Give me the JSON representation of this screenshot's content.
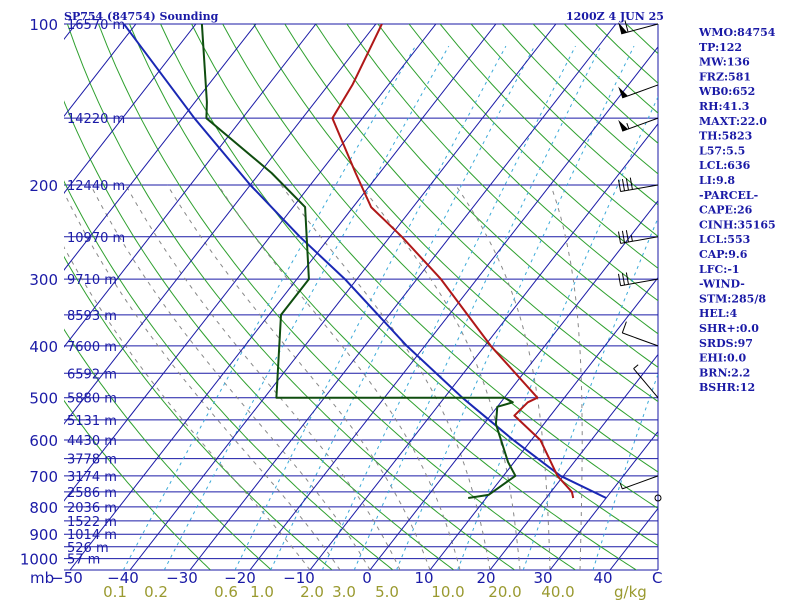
{
  "header": {
    "station": "SP754 (84754) Sounding",
    "time": "1200Z  4 JUN 25"
  },
  "pressure_unit": "mb",
  "mixing_unit": "g/kg",
  "temp_unit": "C",
  "indices": [
    "WMO:84754",
    "TP:122",
    "MW:136",
    "FRZ:581",
    "WB0:652",
    "RH:41.3",
    "MAXT:22.0",
    "TH:5823",
    "L57:5.5",
    "LCL:636",
    "LI:9.8",
    "-PARCEL-",
    "CAPE:26",
    "CINH:35165",
    "LCL:553",
    "CAP:9.6",
    "LFC:-1",
    "-WIND-",
    "STM:285/8",
    "HEL:4",
    "SHR+:0.0",
    "SRDS:97",
    "EHI:0.0",
    "BRN:2.2",
    "BSHR:12"
  ],
  "colors": {
    "isobar": "#1a1aa6",
    "isotherm": "#1a1aa6",
    "dry_adiabat": "#2fa02f",
    "moist_adiabat": "#888888",
    "mixing_ratio": "#3aa9d8",
    "temperature": "#b01818",
    "dewpoint": "#0f4d0f",
    "parcel": "#1a28b4",
    "label_text": "#1a1aa6",
    "mixing_text": "#9a9a30"
  },
  "chart_data": {
    "type": "skew-t",
    "pressure_levels": [
      100,
      200,
      300,
      400,
      500,
      600,
      700,
      800,
      900,
      1000
    ],
    "height_labels": [
      {
        "p": 100,
        "text": "16570 m"
      },
      {
        "p": 150,
        "text": "14220 m"
      },
      {
        "p": 200,
        "text": "12440 m"
      },
      {
        "p": 250,
        "text": "10970 m"
      },
      {
        "p": 300,
        "text": "9710 m"
      },
      {
        "p": 350,
        "text": "8593 m"
      },
      {
        "p": 400,
        "text": "7600 m"
      },
      {
        "p": 450,
        "text": "6592 m"
      },
      {
        "p": 500,
        "text": "5880 m"
      },
      {
        "p": 550,
        "text": "5131 m"
      },
      {
        "p": 600,
        "text": "4430 m"
      },
      {
        "p": 650,
        "text": "3778 m"
      },
      {
        "p": 700,
        "text": "3174 m"
      },
      {
        "p": 750,
        "text": "2586 m"
      },
      {
        "p": 800,
        "text": "2036 m"
      },
      {
        "p": 850,
        "text": "1522 m"
      },
      {
        "p": 900,
        "text": "1014 m"
      },
      {
        "p": 950,
        "text": "526 m"
      },
      {
        "p": 1000,
        "text": "57 m"
      }
    ],
    "temp_ticks": [
      "−50",
      "−40",
      "−30",
      "−20",
      "−10",
      "0",
      "10",
      "20",
      "30",
      "40"
    ],
    "mixing_ticks": [
      "0.1",
      "0.2",
      "0.6",
      "1.0",
      "2.0",
      "3.0",
      "5.0",
      "10.0",
      "20.0",
      "40.0"
    ],
    "temperature": [
      {
        "p": 770,
        "t": 24.5
      },
      {
        "p": 750,
        "t": 23.5
      },
      {
        "p": 700,
        "t": 19.0
      },
      {
        "p": 600,
        "t": 11.5
      },
      {
        "p": 540,
        "t": 4.0
      },
      {
        "p": 510,
        "t": 4.5
      },
      {
        "p": 500,
        "t": 5.5
      },
      {
        "p": 400,
        "t": -9.0
      },
      {
        "p": 300,
        "t": -26.0
      },
      {
        "p": 250,
        "t": -38.0
      },
      {
        "p": 220,
        "t": -47.0
      },
      {
        "p": 190,
        "t": -54.0
      },
      {
        "p": 150,
        "t": -65.0
      },
      {
        "p": 130,
        "t": -66.0
      },
      {
        "p": 100,
        "t": -69.0
      }
    ],
    "dewpoint": [
      {
        "p": 770,
        "t": 7.0
      },
      {
        "p": 760,
        "t": 10.0
      },
      {
        "p": 700,
        "t": 12.0
      },
      {
        "p": 660,
        "t": 9.0
      },
      {
        "p": 580,
        "t": 3.5
      },
      {
        "p": 560,
        "t": 2.0
      },
      {
        "p": 520,
        "t": 0.0
      },
      {
        "p": 510,
        "t": 2.0
      },
      {
        "p": 500,
        "t": 0.0
      },
      {
        "p": 500,
        "t": -38.0
      },
      {
        "p": 350,
        "t": -48.0
      },
      {
        "p": 300,
        "t": -48.0
      },
      {
        "p": 220,
        "t": -58.0
      },
      {
        "p": 190,
        "t": -68.0
      },
      {
        "p": 150,
        "t": -86.0
      },
      {
        "p": 140,
        "t": -88.0
      },
      {
        "p": 100,
        "t": -99.0
      }
    ],
    "parcel": [
      {
        "p": 770,
        "t": 30.0
      },
      {
        "p": 700,
        "t": 19.5
      },
      {
        "p": 600,
        "t": 7.0
      },
      {
        "p": 520,
        "t": -4.0
      },
      {
        "p": 500,
        "t": -7.0
      },
      {
        "p": 400,
        "t": -23.0
      },
      {
        "p": 300,
        "t": -42.0
      },
      {
        "p": 250,
        "t": -55.0
      },
      {
        "p": 200,
        "t": -70.0
      },
      {
        "p": 150,
        "t": -88.0
      },
      {
        "p": 100,
        "t": -112.0
      }
    ],
    "wind_barbs": [
      {
        "p": 100,
        "dir": 255,
        "spd": 60
      },
      {
        "p": 130,
        "dir": 250,
        "spd": 50
      },
      {
        "p": 150,
        "dir": 250,
        "spd": 55
      },
      {
        "p": 200,
        "dir": 260,
        "spd": 40
      },
      {
        "p": 250,
        "dir": 260,
        "spd": 35
      },
      {
        "p": 300,
        "dir": 260,
        "spd": 30
      },
      {
        "p": 400,
        "dir": 290,
        "spd": 10
      },
      {
        "p": 500,
        "dir": 320,
        "spd": 5
      },
      {
        "p": 700,
        "dir": 250,
        "spd": 5
      },
      {
        "p": 770,
        "dir": 0,
        "spd": 0
      }
    ]
  }
}
